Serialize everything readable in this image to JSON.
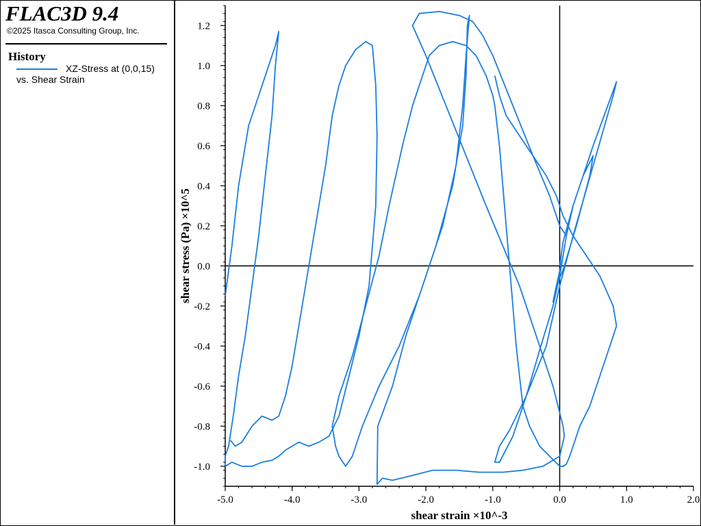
{
  "header": {
    "app_title": "FLAC3D 9.4",
    "copyright": "©2025 Itasca Consulting Group, Inc."
  },
  "legend": {
    "title": "History",
    "entry_label": "XZ-Stress at (0,0,15)",
    "entry_sub": "vs. Shear Strain",
    "entry_color": "#1b7de0"
  },
  "chart_data": {
    "type": "line",
    "title": "",
    "xlabel": "shear strain ×10^-3",
    "ylabel": "shear stress (Pa) ×10^5",
    "xlim": [
      -5.0,
      2.0
    ],
    "ylim": [
      -1.1,
      1.3
    ],
    "xticks": [
      "-5.0",
      "-4.0",
      "-3.0",
      "-2.0",
      "-1.0",
      "0.0",
      "1.0",
      "2.0"
    ],
    "yticks": [
      "-1.0",
      "-0.8",
      "-0.6",
      "-0.4",
      "-0.2",
      "0.0",
      "0.2",
      "0.4",
      "0.6",
      "0.8",
      "1.0",
      "1.2"
    ],
    "grid": false,
    "legend_position": "left-panel",
    "series": [
      {
        "color": "#1b7de0",
        "x": [
          0.0,
          0.05,
          0.2,
          0.5,
          0.85,
          0.8,
          0.5,
          0.2,
          0.0,
          -0.2,
          -0.5,
          -0.75,
          -0.9,
          -0.97,
          -0.9,
          -0.7,
          -0.5,
          -0.3,
          -0.1,
          0.0,
          0.05,
          0.1,
          0.2,
          0.35,
          0.5,
          0.45,
          0.25,
          0.05,
          -0.05,
          -0.1,
          -0.05,
          0.05,
          0.1,
          0.0,
          -0.15,
          -0.4,
          -0.7,
          -1.0,
          -1.15,
          -1.3,
          -1.5,
          -1.8,
          -2.1,
          -2.2,
          -2.0,
          -1.7,
          -1.4,
          -1.1,
          -0.85,
          -0.6,
          -0.35,
          -0.1,
          0.05,
          0.07,
          0.0,
          -0.25,
          -0.55,
          -0.85,
          -1.2,
          -1.55,
          -1.9,
          -2.25,
          -2.5,
          -2.65,
          -2.73,
          -2.72,
          -2.5,
          -2.3,
          -2.05,
          -1.75,
          -1.55,
          -1.45,
          -1.4,
          -1.35,
          -1.38,
          -1.4,
          -1.45,
          -1.6,
          -1.85,
          -2.1,
          -2.4,
          -2.7,
          -2.95,
          -3.1,
          -3.2,
          -3.3,
          -3.35,
          -3.4,
          -3.3,
          -3.1,
          -2.9,
          -2.7,
          -2.55,
          -2.35,
          -2.2,
          -2.05,
          -1.95,
          -1.8,
          -1.6,
          -1.4,
          -1.25,
          -1.1,
          -1.0,
          -0.97,
          -0.9,
          -0.85,
          -0.8,
          -0.75,
          -0.7,
          -0.65,
          -0.6,
          -0.55,
          -0.45,
          -0.3,
          -0.15,
          0.0,
          0.05,
          0.1,
          0.15,
          0.2,
          0.3,
          0.45,
          0.6,
          0.75,
          0.85,
          0.8,
          0.6,
          0.4,
          0.2,
          0.05,
          -0.05,
          -0.2,
          -0.4,
          -0.6,
          -0.8,
          -0.9,
          -0.97
        ],
        "y": [
          0.0,
          0.12,
          0.3,
          0.6,
          0.92,
          0.85,
          0.5,
          0.15,
          -0.1,
          -0.4,
          -0.65,
          -0.82,
          -0.9,
          -0.98,
          -0.98,
          -0.85,
          -0.65,
          -0.42,
          -0.2,
          -0.05,
          0.05,
          0.15,
          0.3,
          0.45,
          0.55,
          0.45,
          0.2,
          -0.02,
          -0.1,
          -0.18,
          -0.1,
          0.05,
          0.15,
          0.2,
          0.35,
          0.55,
          0.8,
          1.05,
          1.15,
          1.22,
          1.25,
          1.27,
          1.26,
          1.2,
          1.05,
          0.8,
          0.55,
          0.3,
          0.1,
          -0.1,
          -0.35,
          -0.6,
          -0.8,
          -0.85,
          -0.95,
          -1.0,
          -1.02,
          -1.03,
          -1.03,
          -1.02,
          -1.02,
          -1.05,
          -1.07,
          -1.06,
          -1.09,
          -0.8,
          -0.6,
          -0.35,
          -0.1,
          0.2,
          0.5,
          0.8,
          1.05,
          1.25,
          1.2,
          0.95,
          0.7,
          0.4,
          0.1,
          -0.15,
          -0.4,
          -0.6,
          -0.8,
          -0.95,
          -1.0,
          -0.95,
          -0.9,
          -0.8,
          -0.65,
          -0.45,
          -0.2,
          0.05,
          0.3,
          0.6,
          0.8,
          0.95,
          1.05,
          1.1,
          1.12,
          1.1,
          1.05,
          0.95,
          0.85,
          0.8,
          0.6,
          0.4,
          0.2,
          0.0,
          -0.2,
          -0.4,
          -0.55,
          -0.7,
          -0.8,
          -0.9,
          -0.95,
          -1.0,
          -1.0,
          -0.99,
          -0.95,
          -0.9,
          -0.8,
          -0.7,
          -0.55,
          -0.4,
          -0.3,
          -0.2,
          -0.05,
          0.05,
          0.15,
          0.25,
          0.35,
          0.45,
          0.55,
          0.65,
          0.75,
          0.85,
          0.95
        ]
      },
      {
        "color": "#1b7de0",
        "x": [
          -5.0,
          -4.9,
          -4.8,
          -4.65,
          -4.5,
          -4.35,
          -4.25,
          -4.2,
          -4.25,
          -4.3,
          -4.4,
          -4.5,
          -4.6,
          -4.7,
          -4.8,
          -4.88,
          -4.95,
          -5.0,
          -5.0,
          -4.9,
          -4.75,
          -4.6,
          -4.45,
          -4.3,
          -4.2,
          -4.1,
          -4.0,
          -3.9,
          -3.75,
          -3.6,
          -3.45,
          -3.3,
          -3.15,
          -3.0,
          -2.85,
          -2.75,
          -2.73,
          -2.75,
          -2.8,
          -2.9,
          -3.05,
          -3.2,
          -3.3,
          -3.4,
          -3.5,
          -3.6,
          -3.7,
          -3.8,
          -3.9,
          -4.0,
          -4.1,
          -4.2,
          -4.3,
          -4.45,
          -4.6,
          -4.75,
          -4.85,
          -4.9,
          -4.92
        ],
        "y": [
          -0.15,
          0.1,
          0.4,
          0.7,
          0.85,
          1.0,
          1.1,
          1.17,
          1.0,
          0.75,
          0.45,
          0.15,
          -0.1,
          -0.35,
          -0.55,
          -0.75,
          -0.9,
          -0.95,
          -1.0,
          -0.98,
          -1.0,
          -1.0,
          -0.98,
          -0.97,
          -0.95,
          -0.92,
          -0.9,
          -0.88,
          -0.9,
          -0.88,
          -0.85,
          -0.75,
          -0.55,
          -0.35,
          -0.1,
          0.3,
          0.65,
          0.9,
          1.1,
          1.12,
          1.08,
          1.0,
          0.9,
          0.75,
          0.5,
          0.3,
          0.1,
          -0.1,
          -0.3,
          -0.5,
          -0.65,
          -0.75,
          -0.77,
          -0.75,
          -0.8,
          -0.88,
          -0.9,
          -0.88,
          -0.87
        ]
      }
    ]
  }
}
